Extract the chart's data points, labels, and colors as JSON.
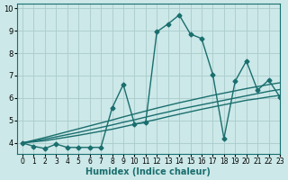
{
  "xlabel": "Humidex (Indice chaleur)",
  "ylabel": "",
  "xlim": [
    -0.5,
    23
  ],
  "ylim": [
    3.5,
    10.2
  ],
  "yticks": [
    4,
    5,
    6,
    7,
    8,
    9,
    10
  ],
  "xticks": [
    0,
    1,
    2,
    3,
    4,
    5,
    6,
    7,
    8,
    9,
    10,
    11,
    12,
    13,
    14,
    15,
    16,
    17,
    18,
    19,
    20,
    21,
    22,
    23
  ],
  "bg_color": "#cce8e8",
  "grid_color": "#aacccc",
  "line_color": "#1a6e6e",
  "line_width": 1.0,
  "marker": "D",
  "marker_size": 2.5,
  "series1": [
    [
      0,
      4.0
    ],
    [
      1,
      3.85
    ],
    [
      2,
      3.75
    ],
    [
      3,
      3.95
    ],
    [
      4,
      3.8
    ],
    [
      5,
      3.8
    ],
    [
      6,
      3.8
    ],
    [
      7,
      3.8
    ],
    [
      8,
      5.55
    ],
    [
      9,
      6.6
    ],
    [
      10,
      4.85
    ],
    [
      11,
      4.9
    ],
    [
      12,
      8.95
    ],
    [
      13,
      9.3
    ],
    [
      14,
      9.7
    ],
    [
      15,
      8.85
    ],
    [
      16,
      8.65
    ],
    [
      17,
      7.05
    ],
    [
      18,
      4.2
    ],
    [
      19,
      6.75
    ],
    [
      20,
      7.65
    ],
    [
      21,
      6.35
    ],
    [
      22,
      6.8
    ],
    [
      23,
      6.05
    ]
  ],
  "curve2_x": [
    0,
    1,
    2,
    3,
    4,
    5,
    6,
    7,
    8,
    9,
    10,
    11,
    12,
    13,
    14,
    15,
    16,
    17,
    18,
    19,
    20,
    21,
    22,
    23
  ],
  "curve2_y": [
    4.0,
    4.05,
    4.1,
    4.18,
    4.26,
    4.34,
    4.43,
    4.52,
    4.61,
    4.72,
    4.83,
    4.94,
    5.05,
    5.17,
    5.28,
    5.39,
    5.5,
    5.6,
    5.7,
    5.8,
    5.9,
    5.97,
    6.05,
    6.12
  ],
  "curve3_x": [
    0,
    1,
    2,
    3,
    4,
    5,
    6,
    7,
    8,
    9,
    10,
    11,
    12,
    13,
    14,
    15,
    16,
    17,
    18,
    19,
    20,
    21,
    22,
    23
  ],
  "curve3_y": [
    4.0,
    4.08,
    4.17,
    4.27,
    4.37,
    4.47,
    4.58,
    4.69,
    4.8,
    4.92,
    5.03,
    5.15,
    5.27,
    5.38,
    5.5,
    5.6,
    5.7,
    5.8,
    5.9,
    6.0,
    6.1,
    6.2,
    6.3,
    6.38
  ],
  "curve4_x": [
    0,
    1,
    2,
    3,
    4,
    5,
    6,
    7,
    8,
    9,
    10,
    11,
    12,
    13,
    14,
    15,
    16,
    17,
    18,
    19,
    20,
    21,
    22,
    23
  ],
  "curve4_y": [
    4.0,
    4.12,
    4.24,
    4.37,
    4.5,
    4.63,
    4.76,
    4.89,
    5.02,
    5.16,
    5.29,
    5.42,
    5.55,
    5.67,
    5.79,
    5.9,
    6.01,
    6.12,
    6.22,
    6.32,
    6.42,
    6.51,
    6.6,
    6.68
  ]
}
